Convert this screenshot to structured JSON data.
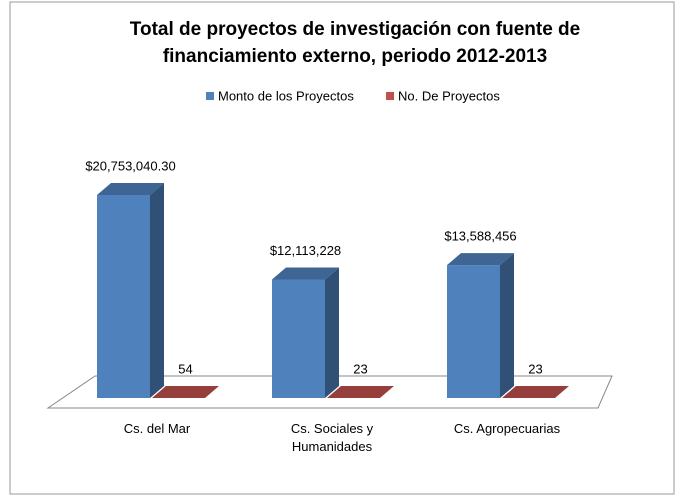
{
  "chart_data": {
    "type": "bar3d",
    "title": "Total de proyectos de investigación con fuente de financiamiento externo, periodo 2012-2013",
    "categories": [
      "Cs. del Mar",
      "Cs. Sociales y Humanidades",
      "Cs. Agropecuarias"
    ],
    "series": [
      {
        "name": "Monto de los Proyectos",
        "color": "#4f81bd",
        "values": [
          20753040.3,
          12113228,
          13588456
        ],
        "value_labels": [
          "$20,753,040.30",
          "$12,113,228",
          "$13,588,456"
        ]
      },
      {
        "name": "No. De Proyectos",
        "color": "#c0504d",
        "values": [
          54,
          23,
          23
        ]
      }
    ]
  }
}
